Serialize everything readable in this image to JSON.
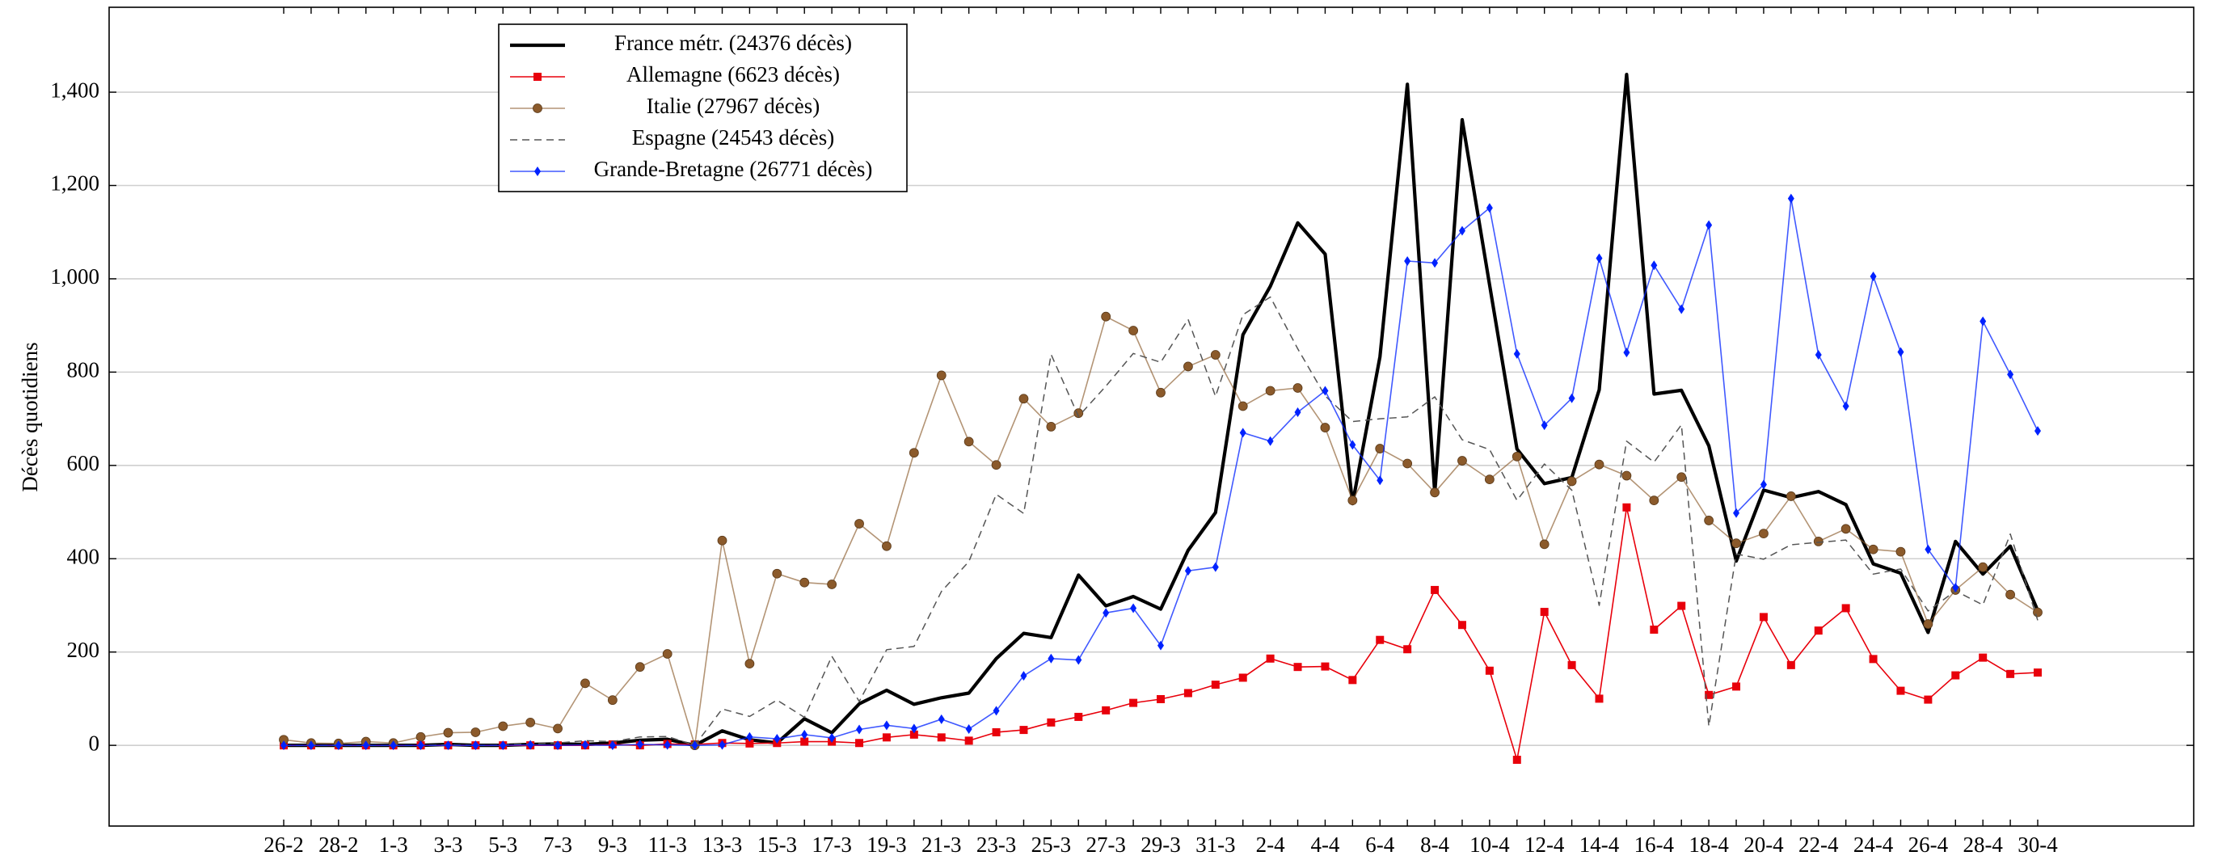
{
  "chart_data": {
    "type": "line",
    "y_label": "Décès quotidiens",
    "categories": [
      "26-2",
      null,
      "28-2",
      null,
      "1-3",
      null,
      "3-3",
      null,
      "5-3",
      null,
      "7-3",
      null,
      "9-3",
      null,
      "11-3",
      null,
      "13-3",
      null,
      "15-3",
      null,
      "17-3",
      null,
      "19-3",
      null,
      "21-3",
      null,
      "23-3",
      null,
      "25-3",
      null,
      "27-3",
      null,
      "29-3",
      null,
      "31-3",
      null,
      "2-4",
      null,
      "4-4",
      null,
      "6-4",
      null,
      "8-4",
      null,
      "10-4",
      null,
      "12-4",
      null,
      "14-4",
      null,
      "16-4",
      null,
      "18-4",
      null,
      "20-4",
      null,
      "22-4",
      null,
      "24-4",
      null,
      "26-4",
      null,
      "28-4",
      null,
      "30-4"
    ],
    "ylim": [
      -173,
      1582
    ],
    "yticks": [
      0,
      200,
      400,
      600,
      800,
      {
        "value": 1000,
        "label": "1,000"
      },
      {
        "value": 1200,
        "label": "1,200"
      },
      {
        "value": 1400,
        "label": "1,400"
      }
    ],
    "grid": true,
    "series": [
      {
        "name": "France métr. (24376 décès)",
        "color": "#000000",
        "marker": "none",
        "dash": false,
        "thick": true,
        "values": [
          0,
          0,
          0,
          0,
          0,
          0,
          2,
          0,
          0,
          2,
          3,
          2,
          5,
          11,
          13,
          0,
          31,
          12,
          5,
          57,
          27,
          89,
          118,
          88,
          102,
          112,
          186,
          240,
          231,
          365,
          299,
          319,
          292,
          418,
          499,
          880,
          984,
          1120,
          1053,
          518,
          833,
          1417,
          541,
          1341,
          987,
          635,
          561,
          574,
          762,
          1438,
          753,
          761,
          642,
          395,
          547,
          531,
          544,
          516,
          389,
          369,
          242,
          437,
          367,
          427,
          289
        ]
      },
      {
        "name": "Allemagne (6623 décès)",
        "color": "#e8000b",
        "marker": "square",
        "dash": false,
        "thick": false,
        "values": [
          0,
          0,
          0,
          0,
          0,
          0,
          0,
          0,
          0,
          0,
          0,
          0,
          2,
          0,
          3,
          2,
          5,
          4,
          5,
          8,
          8,
          5,
          17,
          23,
          17,
          10,
          28,
          33,
          49,
          61,
          75,
          91,
          99,
          112,
          130,
          145,
          186,
          168,
          169,
          140,
          226,
          206,
          333,
          258,
          160,
          -31,
          286,
          172,
          100,
          510,
          248,
          299,
          108,
          126,
          275,
          172,
          246,
          294,
          185,
          117,
          98,
          150,
          188,
          153,
          156
        ]
      },
      {
        "name": "Italie (27967 décès)",
        "color": "#8b5a2b",
        "marker": "circle",
        "dash": false,
        "thick": false,
        "values": [
          12,
          5,
          4,
          8,
          5,
          18,
          27,
          28,
          41,
          49,
          36,
          133,
          97,
          168,
          196,
          0,
          439,
          175,
          368,
          349,
          345,
          475,
          427,
          627,
          793,
          651,
          601,
          743,
          683,
          712,
          919,
          889,
          756,
          812,
          837,
          727,
          760,
          766,
          681,
          525,
          636,
          604,
          542,
          610,
          570,
          619,
          431,
          566,
          602,
          578,
          525,
          575,
          482,
          433,
          454,
          534,
          437,
          464,
          420,
          415,
          260,
          333,
          382,
          323,
          285
        ]
      },
      {
        "name": "Espagne (24543 décès)",
        "color": "#555555",
        "marker": "none",
        "dash": true,
        "thick": false,
        "values": [
          0,
          0,
          0,
          0,
          0,
          0,
          1,
          0,
          1,
          3,
          5,
          10,
          8,
          18,
          19,
          0,
          78,
          62,
          97,
          60,
          191,
          94,
          205,
          212,
          330,
          394,
          538,
          497,
          838,
          705,
          770,
          840,
          821,
          913,
          748,
          923,
          961,
          850,
          749,
          694,
          700,
          704,
          747,
          655,
          634,
          525,
          603,
          547,
          300,
          652,
          607,
          687,
          41,
          410,
          399,
          430,
          435,
          440,
          367,
          378,
          288,
          331,
          301,
          453,
          268
        ]
      },
      {
        "name": "Grande-Bretagne (26771 décès)",
        "color": "#0022ff",
        "marker": "diamond",
        "dash": false,
        "thick": false,
        "values": [
          0,
          0,
          0,
          0,
          0,
          0,
          0,
          0,
          0,
          1,
          0,
          1,
          0,
          2,
          1,
          0,
          1,
          18,
          14,
          23,
          16,
          34,
          43,
          36,
          56,
          35,
          74,
          149,
          186,
          183,
          284,
          294,
          214,
          374,
          382,
          670,
          652,
          714,
          760,
          644,
          568,
          1038,
          1034,
          1103,
          1152,
          839,
          686,
          744,
          1044,
          842,
          1029,
          935,
          1115,
          498,
          559,
          1172,
          837,
          727,
          1005,
          843,
          420,
          338,
          909,
          795,
          674
        ]
      }
    ]
  }
}
